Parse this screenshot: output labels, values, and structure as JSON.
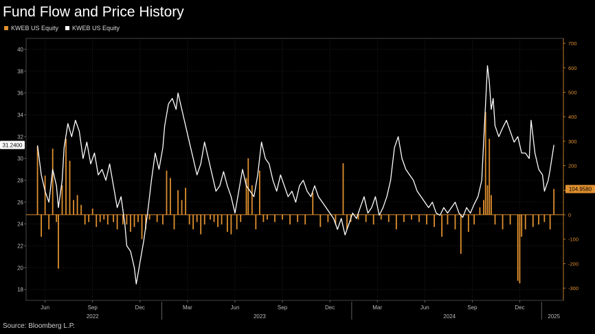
{
  "chart_data": {
    "type": "line",
    "title": "Fund Flow and Price History",
    "source": "Source: Bloomberg L.P.",
    "series": [
      {
        "name": "KWEB US Equity",
        "kind": "bar",
        "axis": "right",
        "color": "#e0902f",
        "last_value_label": "104.9580",
        "values": [
          [
            2022.33,
            280
          ],
          [
            2022.35,
            -90
          ],
          [
            2022.37,
            160
          ],
          [
            2022.39,
            -60
          ],
          [
            2022.41,
            270
          ],
          [
            2022.43,
            -30
          ],
          [
            2022.44,
            -220
          ],
          [
            2022.46,
            120
          ],
          [
            2022.48,
            310
          ],
          [
            2022.5,
            220
          ],
          [
            2022.52,
            60
          ],
          [
            2022.54,
            80
          ],
          [
            2022.56,
            40
          ],
          [
            2022.58,
            -40
          ],
          [
            2022.6,
            -30
          ],
          [
            2022.62,
            25
          ],
          [
            2022.64,
            -50
          ],
          [
            2022.66,
            -30
          ],
          [
            2022.68,
            -20
          ],
          [
            2022.7,
            -40
          ],
          [
            2022.73,
            -30
          ],
          [
            2022.75,
            -60
          ],
          [
            2022.78,
            -40
          ],
          [
            2022.8,
            -40
          ],
          [
            2022.82,
            -70
          ],
          [
            2022.84,
            -50
          ],
          [
            2022.86,
            -30
          ],
          [
            2022.88,
            -100
          ],
          [
            2022.9,
            -60
          ],
          [
            2022.92,
            -20
          ],
          [
            2022.96,
            -30
          ],
          [
            2022.99,
            -40
          ],
          [
            2023.01,
            180
          ],
          [
            2023.03,
            150
          ],
          [
            2023.05,
            -60
          ],
          [
            2023.07,
            100
          ],
          [
            2023.09,
            60
          ],
          [
            2023.11,
            110
          ],
          [
            2023.13,
            -40
          ],
          [
            2023.15,
            -60
          ],
          [
            2023.17,
            -30
          ],
          [
            2023.19,
            -80
          ],
          [
            2023.21,
            -40
          ],
          [
            2023.24,
            -20
          ],
          [
            2023.26,
            -30
          ],
          [
            2023.28,
            -50
          ],
          [
            2023.3,
            -40
          ],
          [
            2023.33,
            -70
          ],
          [
            2023.35,
            -80
          ],
          [
            2023.38,
            -60
          ],
          [
            2023.4,
            -30
          ],
          [
            2023.43,
            150
          ],
          [
            2023.44,
            230
          ],
          [
            2023.46,
            120
          ],
          [
            2023.48,
            -60
          ],
          [
            2023.5,
            180
          ],
          [
            2023.52,
            -30
          ],
          [
            2023.54,
            -20
          ],
          [
            2023.58,
            -30
          ],
          [
            2023.62,
            -20
          ],
          [
            2023.66,
            -40
          ],
          [
            2023.7,
            -30
          ],
          [
            2023.74,
            -40
          ],
          [
            2023.78,
            90
          ],
          [
            2023.82,
            -50
          ],
          [
            2023.86,
            -30
          ],
          [
            2023.9,
            -40
          ],
          [
            2023.94,
            210
          ],
          [
            2023.96,
            -60
          ],
          [
            2023.98,
            -30
          ],
          [
            2024.02,
            -20
          ],
          [
            2024.06,
            -30
          ],
          [
            2024.1,
            -40
          ],
          [
            2024.14,
            -20
          ],
          [
            2024.18,
            -30
          ],
          [
            2024.22,
            -60
          ],
          [
            2024.26,
            -30
          ],
          [
            2024.3,
            -20
          ],
          [
            2024.34,
            -30
          ],
          [
            2024.38,
            -40
          ],
          [
            2024.42,
            -50
          ],
          [
            2024.46,
            -90
          ],
          [
            2024.49,
            -40
          ],
          [
            2024.53,
            -60
          ],
          [
            2024.56,
            -160
          ],
          [
            2024.6,
            -70
          ],
          [
            2024.63,
            -40
          ],
          [
            2024.66,
            30
          ],
          [
            2024.68,
            60
          ],
          [
            2024.69,
            420
          ],
          [
            2024.7,
            120
          ],
          [
            2024.71,
            310
          ],
          [
            2024.72,
            80
          ],
          [
            2024.74,
            -40
          ],
          [
            2024.78,
            -60
          ],
          [
            2024.82,
            -40
          ],
          [
            2024.86,
            -270
          ],
          [
            2024.87,
            -280
          ],
          [
            2024.88,
            -90
          ],
          [
            2024.9,
            -60
          ],
          [
            2024.94,
            -50
          ],
          [
            2024.97,
            -40
          ],
          [
            2025.0,
            -30
          ],
          [
            2025.03,
            -60
          ],
          [
            2025.05,
            104.958
          ]
        ]
      },
      {
        "name": "KWEB US Equity",
        "kind": "line",
        "axis": "left",
        "color": "#ffffff",
        "last_value_label": "31.2400",
        "values": [
          [
            2022.33,
            31.2
          ],
          [
            2022.35,
            28.5
          ],
          [
            2022.37,
            27.0
          ],
          [
            2022.39,
            26.0
          ],
          [
            2022.41,
            29.0
          ],
          [
            2022.43,
            27.5
          ],
          [
            2022.44,
            25.5
          ],
          [
            2022.46,
            28.0
          ],
          [
            2022.47,
            31.0
          ],
          [
            2022.49,
            33.2
          ],
          [
            2022.51,
            32.0
          ],
          [
            2022.53,
            33.5
          ],
          [
            2022.55,
            32.5
          ],
          [
            2022.57,
            30.0
          ],
          [
            2022.59,
            31.5
          ],
          [
            2022.61,
            29.5
          ],
          [
            2022.63,
            30.5
          ],
          [
            2022.65,
            28.5
          ],
          [
            2022.67,
            29.0
          ],
          [
            2022.69,
            28.0
          ],
          [
            2022.71,
            29.5
          ],
          [
            2022.73,
            27.5
          ],
          [
            2022.75,
            25.5
          ],
          [
            2022.77,
            26.5
          ],
          [
            2022.79,
            24.0
          ],
          [
            2022.8,
            22.0
          ],
          [
            2022.82,
            21.5
          ],
          [
            2022.84,
            20.0
          ],
          [
            2022.85,
            18.5
          ],
          [
            2022.87,
            20.5
          ],
          [
            2022.89,
            22.5
          ],
          [
            2022.91,
            25.0
          ],
          [
            2022.93,
            28.0
          ],
          [
            2022.95,
            30.5
          ],
          [
            2022.97,
            29.0
          ],
          [
            2022.99,
            31.0
          ],
          [
            2023.0,
            33.0
          ],
          [
            2023.02,
            35.0
          ],
          [
            2023.04,
            35.5
          ],
          [
            2023.06,
            34.5
          ],
          [
            2023.07,
            36.0
          ],
          [
            2023.09,
            34.5
          ],
          [
            2023.11,
            33.0
          ],
          [
            2023.13,
            31.5
          ],
          [
            2023.15,
            30.0
          ],
          [
            2023.17,
            28.5
          ],
          [
            2023.19,
            29.5
          ],
          [
            2023.21,
            31.5
          ],
          [
            2023.23,
            30.0
          ],
          [
            2023.25,
            28.5
          ],
          [
            2023.27,
            27.0
          ],
          [
            2023.29,
            27.5
          ],
          [
            2023.31,
            28.8
          ],
          [
            2023.33,
            27.5
          ],
          [
            2023.35,
            26.5
          ],
          [
            2023.37,
            25.0
          ],
          [
            2023.39,
            27.0
          ],
          [
            2023.41,
            29.0
          ],
          [
            2023.43,
            27.5
          ],
          [
            2023.45,
            27.0
          ],
          [
            2023.47,
            26.5
          ],
          [
            2023.49,
            28.5
          ],
          [
            2023.51,
            31.5
          ],
          [
            2023.53,
            30.0
          ],
          [
            2023.55,
            29.5
          ],
          [
            2023.57,
            28.0
          ],
          [
            2023.59,
            27.0
          ],
          [
            2023.61,
            28.5
          ],
          [
            2023.63,
            27.5
          ],
          [
            2023.65,
            26.5
          ],
          [
            2023.67,
            27.0
          ],
          [
            2023.69,
            26.0
          ],
          [
            2023.71,
            27.5
          ],
          [
            2023.73,
            28.0
          ],
          [
            2023.75,
            27.0
          ],
          [
            2023.77,
            26.5
          ],
          [
            2023.79,
            27.5
          ],
          [
            2023.81,
            26.5
          ],
          [
            2023.83,
            26.0
          ],
          [
            2023.85,
            25.5
          ],
          [
            2023.87,
            25.0
          ],
          [
            2023.89,
            24.5
          ],
          [
            2023.91,
            23.5
          ],
          [
            2023.93,
            24.5
          ],
          [
            2023.95,
            23.0
          ],
          [
            2023.97,
            24.0
          ],
          [
            2023.99,
            25.0
          ],
          [
            2024.01,
            24.5
          ],
          [
            2024.03,
            25.5
          ],
          [
            2024.05,
            26.5
          ],
          [
            2024.07,
            25.0
          ],
          [
            2024.09,
            25.5
          ],
          [
            2024.11,
            26.5
          ],
          [
            2024.13,
            24.8
          ],
          [
            2024.15,
            25.5
          ],
          [
            2024.17,
            26.5
          ],
          [
            2024.19,
            28.0
          ],
          [
            2024.21,
            31.0
          ],
          [
            2024.23,
            32.0
          ],
          [
            2024.25,
            30.0
          ],
          [
            2024.27,
            29.0
          ],
          [
            2024.29,
            28.5
          ],
          [
            2024.31,
            28.0
          ],
          [
            2024.33,
            27.0
          ],
          [
            2024.35,
            26.5
          ],
          [
            2024.37,
            26.0
          ],
          [
            2024.39,
            25.5
          ],
          [
            2024.41,
            26.0
          ],
          [
            2024.43,
            25.0
          ],
          [
            2024.45,
            24.8
          ],
          [
            2024.47,
            25.5
          ],
          [
            2024.49,
            25.0
          ],
          [
            2024.51,
            25.5
          ],
          [
            2024.53,
            26.0
          ],
          [
            2024.55,
            25.0
          ],
          [
            2024.57,
            24.6
          ],
          [
            2024.59,
            25.5
          ],
          [
            2024.61,
            25.0
          ],
          [
            2024.63,
            25.8
          ],
          [
            2024.65,
            26.5
          ],
          [
            2024.67,
            28.0
          ],
          [
            2024.68,
            31.5
          ],
          [
            2024.69,
            35.0
          ],
          [
            2024.7,
            38.5
          ],
          [
            2024.71,
            37.0
          ],
          [
            2024.72,
            34.5
          ],
          [
            2024.73,
            35.5
          ],
          [
            2024.74,
            33.0
          ],
          [
            2024.76,
            32.0
          ],
          [
            2024.78,
            32.8
          ],
          [
            2024.8,
            33.5
          ],
          [
            2024.82,
            32.5
          ],
          [
            2024.84,
            31.5
          ],
          [
            2024.86,
            32.0
          ],
          [
            2024.88,
            30.5
          ],
          [
            2024.9,
            30.5
          ],
          [
            2024.92,
            30.0
          ],
          [
            2024.93,
            33.5
          ],
          [
            2024.95,
            30.5
          ],
          [
            2024.97,
            29.0
          ],
          [
            2024.99,
            28.5
          ],
          [
            2025.0,
            27.0
          ],
          [
            2025.02,
            28.0
          ],
          [
            2025.03,
            29.0
          ],
          [
            2025.05,
            31.24
          ]
        ]
      }
    ],
    "left_axis": {
      "ylim": [
        17,
        41
      ],
      "ticks": [
        18,
        20,
        22,
        24,
        26,
        28,
        30,
        32,
        34,
        36,
        38,
        40
      ]
    },
    "right_axis": {
      "ylim": [
        -350,
        720
      ],
      "ticks": [
        -300,
        -200,
        -100,
        0,
        100,
        200,
        300,
        400,
        500,
        600,
        700
      ]
    },
    "x_axis": {
      "xlim": [
        2022.27,
        2025.1
      ],
      "month_ticks": [
        {
          "label": "Jun",
          "x": 2022.37
        },
        {
          "label": "Sep",
          "x": 2022.62
        },
        {
          "label": "Dec",
          "x": 2022.87
        },
        {
          "label": "Mar",
          "x": 2023.12
        },
        {
          "label": "Jun",
          "x": 2023.37
        },
        {
          "label": "Sep",
          "x": 2023.62
        },
        {
          "label": "Dec",
          "x": 2023.87
        },
        {
          "label": "Mar",
          "x": 2024.12
        },
        {
          "label": "Jun",
          "x": 2024.37
        },
        {
          "label": "Sep",
          "x": 2024.62
        },
        {
          "label": "Dec",
          "x": 2024.87
        }
      ],
      "year_labels": [
        {
          "label": "2022",
          "x": 2022.62
        },
        {
          "label": "2023",
          "x": 2023.5
        },
        {
          "label": "2024",
          "x": 2024.5
        },
        {
          "label": "2025",
          "x": 2025.05
        }
      ],
      "year_separators": [
        2022.985,
        2023.985,
        2024.985
      ]
    },
    "grid": true,
    "legend_position": "top-left"
  }
}
